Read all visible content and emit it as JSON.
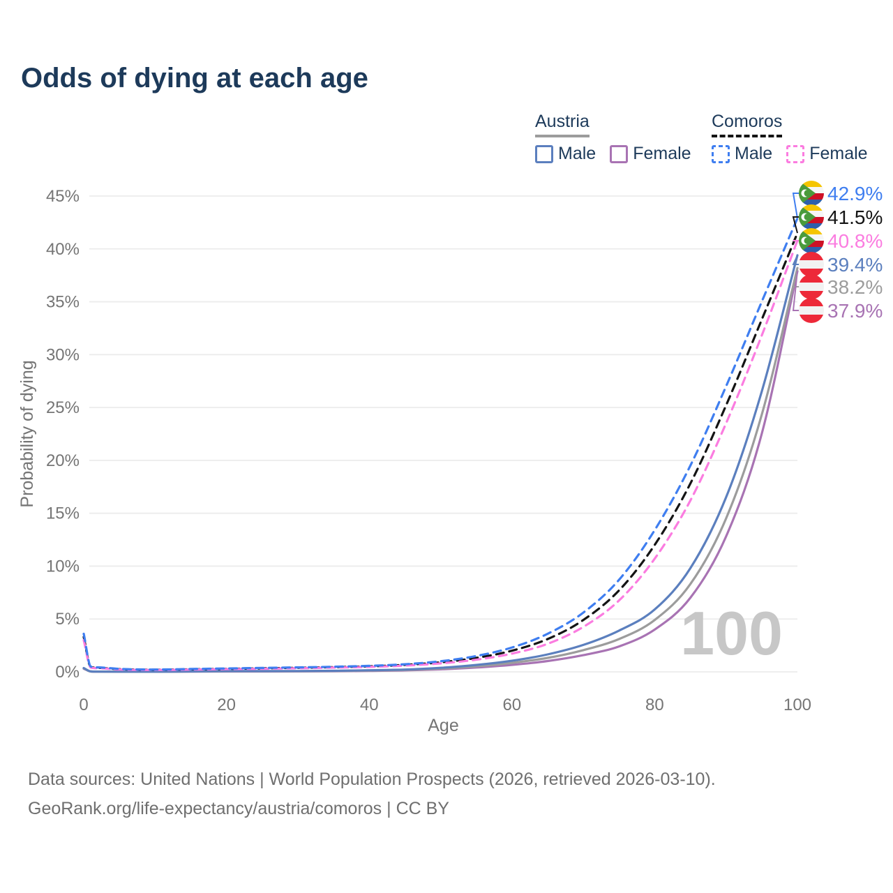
{
  "title": "Odds of dying at each age",
  "legend": {
    "groups": [
      {
        "name": "Austria",
        "line_style": "solid",
        "underline_color": "#9c9c9c",
        "items": [
          {
            "label": "Male",
            "color": "#5b7fbe"
          },
          {
            "label": "Female",
            "color": "#a873b3"
          }
        ]
      },
      {
        "name": "Comoros",
        "line_style": "dashed",
        "underline_color": "#141414",
        "items": [
          {
            "label": "Male",
            "color": "#3f7ef0"
          },
          {
            "label": "Female",
            "color": "#fb7ce0"
          }
        ]
      }
    ]
  },
  "chart_data": {
    "type": "line",
    "title": "Odds of dying at each age",
    "xlabel": "Age",
    "ylabel": "Probability of dying",
    "xlim": [
      0,
      100
    ],
    "ylim": [
      0,
      45
    ],
    "x_ticks": [
      0,
      20,
      40,
      60,
      80,
      100
    ],
    "y_ticks": [
      0,
      5,
      10,
      15,
      20,
      25,
      30,
      35,
      40,
      45
    ],
    "y_tick_suffix": "%",
    "grid": "horizontal-only",
    "watermark": "100",
    "x": [
      0,
      1,
      2,
      5,
      10,
      15,
      20,
      25,
      30,
      35,
      40,
      45,
      50,
      55,
      60,
      65,
      70,
      75,
      80,
      85,
      90,
      95,
      100
    ],
    "series": [
      {
        "id": "comoros-male",
        "country": "Comoros",
        "sex": "Male",
        "color": "#3f7ef0",
        "dashed": true,
        "flag": "comoros",
        "end_label": "42.9%",
        "values": [
          3.6,
          0.5,
          0.42,
          0.28,
          0.22,
          0.27,
          0.32,
          0.37,
          0.42,
          0.48,
          0.57,
          0.72,
          1.0,
          1.5,
          2.3,
          3.6,
          5.6,
          8.7,
          13.4,
          19.5,
          27.0,
          35.0,
          42.9
        ]
      },
      {
        "id": "comoros-both",
        "country": "Comoros",
        "sex": "Both",
        "color": "#141414",
        "dashed": true,
        "flag": "comoros",
        "end_label": "41.5%",
        "values": [
          3.3,
          0.45,
          0.38,
          0.25,
          0.2,
          0.24,
          0.28,
          0.33,
          0.38,
          0.44,
          0.52,
          0.66,
          0.9,
          1.32,
          2.0,
          3.1,
          4.9,
          7.7,
          12.0,
          17.8,
          25.2,
          33.3,
          41.5
        ]
      },
      {
        "id": "comoros-female",
        "country": "Comoros",
        "sex": "Female",
        "color": "#fb7ce0",
        "dashed": true,
        "flag": "comoros",
        "end_label": "40.8%",
        "values": [
          3.0,
          0.4,
          0.34,
          0.22,
          0.18,
          0.21,
          0.25,
          0.29,
          0.34,
          0.4,
          0.47,
          0.59,
          0.8,
          1.15,
          1.72,
          2.65,
          4.25,
          6.75,
          10.7,
          16.2,
          23.5,
          31.8,
          40.8
        ]
      },
      {
        "id": "austria-male",
        "country": "Austria",
        "sex": "Male",
        "color": "#5b7fbe",
        "dashed": false,
        "flag": "austria",
        "end_label": "39.4%",
        "values": [
          0.36,
          0.04,
          0.02,
          0.01,
          0.01,
          0.04,
          0.07,
          0.07,
          0.08,
          0.1,
          0.15,
          0.22,
          0.38,
          0.65,
          1.05,
          1.65,
          2.55,
          3.9,
          5.9,
          9.8,
          16.5,
          26.5,
          39.4
        ]
      },
      {
        "id": "austria-both",
        "country": "Austria",
        "sex": "Both",
        "color": "#9c9c9c",
        "dashed": false,
        "flag": "austria",
        "end_label": "38.2%",
        "values": [
          0.33,
          0.03,
          0.02,
          0.01,
          0.01,
          0.03,
          0.05,
          0.05,
          0.06,
          0.08,
          0.12,
          0.18,
          0.31,
          0.52,
          0.85,
          1.32,
          2.05,
          3.1,
          4.9,
          8.3,
          14.5,
          24.3,
          38.2
        ]
      },
      {
        "id": "austria-female",
        "country": "Austria",
        "sex": "Female",
        "color": "#a873b3",
        "dashed": false,
        "flag": "austria",
        "end_label": "37.9%",
        "values": [
          0.3,
          0.03,
          0.02,
          0.01,
          0.01,
          0.02,
          0.03,
          0.03,
          0.04,
          0.06,
          0.09,
          0.14,
          0.24,
          0.41,
          0.66,
          1.02,
          1.58,
          2.4,
          4.0,
          7.0,
          12.8,
          22.5,
          37.9
        ]
      }
    ],
    "flag_colors": {
      "comoros": {
        "yellow": "#F5C500",
        "white": "#f6f6f6",
        "red": "#CE1126",
        "blue": "#2E5FAC",
        "green": "#4a9b3c"
      },
      "austria": {
        "red": "#ED2939",
        "white": "#f2f2f2"
      }
    },
    "text_colors": {
      "axis": "#757575",
      "watermark": "#c7c7c7",
      "grid": "#ececec"
    }
  },
  "footer": {
    "line1": "Data sources: United Nations | World Population Prospects (2026, retrieved 2026-03-10).",
    "line2": "GeoRank.org/life-expectancy/austria/comoros | CC BY"
  }
}
